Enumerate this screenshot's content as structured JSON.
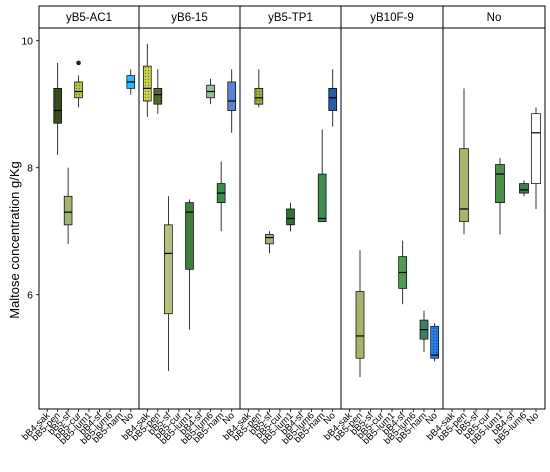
{
  "chart_data": {
    "type": "boxplot",
    "ylabel": "Maltose concentration g/Kg",
    "ylim": [
      4.2,
      10.2
    ],
    "yticks": [
      "6",
      "8",
      "10"
    ],
    "panels": [
      {
        "title": "yB5-AC1",
        "categories": [
          "bB4-sak",
          "bB5-pen",
          "bB5-sf",
          "bB5-cur",
          "bB5-lum1",
          "bB4-sf",
          "bB5-lum6",
          "bB5-ham",
          "No"
        ],
        "boxes": [
          {
            "cat": "bB5-pen",
            "color": "#3a4f1d",
            "hatch": true,
            "min": 8.2,
            "q1": 8.7,
            "med": 8.9,
            "q3": 9.25,
            "max": 9.65,
            "outliers": []
          },
          {
            "cat": "bB5-sf",
            "color": "#a3b471",
            "hatch": false,
            "min": 6.8,
            "q1": 7.1,
            "med": 7.3,
            "q3": 7.55,
            "max": 8.0,
            "outliers": []
          },
          {
            "cat": "bB5-cur",
            "color": "#b5c94a",
            "hatch": true,
            "min": 8.95,
            "q1": 9.1,
            "med": 9.2,
            "q3": 9.35,
            "max": 9.45,
            "outliers": [
              9.65
            ]
          },
          {
            "cat": "No",
            "color": "#2eb8ff",
            "hatch": false,
            "min": 9.15,
            "q1": 9.25,
            "med": 9.35,
            "q3": 9.45,
            "max": 9.55,
            "outliers": []
          }
        ]
      },
      {
        "title": "yB6-15",
        "categories": [
          "bB4-sak",
          "bB5-pen",
          "bB5-sf",
          "bB5-cur",
          "bB5-lum1",
          "bB4-sf",
          "bB5-lum6",
          "bB5-ham",
          "No"
        ],
        "boxes": [
          {
            "cat": "bB4-sak",
            "color": "#cfd94a",
            "hatch": true,
            "min": 8.8,
            "q1": 9.05,
            "med": 9.25,
            "q3": 9.6,
            "max": 9.95,
            "outliers": []
          },
          {
            "cat": "bB5-pen",
            "color": "#5c6b2e",
            "hatch": true,
            "min": 8.85,
            "q1": 9.0,
            "med": 9.15,
            "q3": 9.25,
            "max": 9.55,
            "outliers": []
          },
          {
            "cat": "bB5-sf",
            "color": "#b4c181",
            "hatch": false,
            "min": 4.8,
            "q1": 5.7,
            "med": 6.65,
            "q3": 7.1,
            "max": 7.55,
            "outliers": []
          },
          {
            "cat": "bB5-lum1",
            "color": "#3e7d3a",
            "hatch": false,
            "min": 5.45,
            "q1": 6.4,
            "med": 7.3,
            "q3": 7.45,
            "max": 7.5,
            "outliers": []
          },
          {
            "cat": "bB5-lum6",
            "color": "#8fc09a",
            "hatch": false,
            "min": 9.0,
            "q1": 9.1,
            "med": 9.2,
            "q3": 9.3,
            "max": 9.4,
            "outliers": []
          },
          {
            "cat": "bB5-ham",
            "color": "#3d8c4a",
            "hatch": false,
            "min": 7.0,
            "q1": 7.45,
            "med": 7.6,
            "q3": 7.75,
            "max": 8.1,
            "outliers": []
          },
          {
            "cat": "No",
            "color": "#5b82d6",
            "hatch": false,
            "min": 8.55,
            "q1": 8.9,
            "med": 9.05,
            "q3": 9.35,
            "max": 9.55,
            "outliers": []
          }
        ]
      },
      {
        "title": "yB5-TP1",
        "categories": [
          "bB4-sak",
          "bB5-pen",
          "bB5-sf",
          "bB5-cur",
          "bB5-lum1",
          "bB4-sf",
          "bB5-lum6",
          "bB5-ham",
          "No"
        ],
        "boxes": [
          {
            "cat": "bB5-pen",
            "color": "#a9ab4a",
            "hatch": true,
            "min": 8.95,
            "q1": 9.0,
            "med": 9.1,
            "q3": 9.25,
            "max": 9.55,
            "outliers": []
          },
          {
            "cat": "bB5-sf",
            "color": "#9fb573",
            "hatch": false,
            "min": 6.65,
            "q1": 6.8,
            "med": 6.9,
            "q3": 6.95,
            "max": 7.0,
            "outliers": []
          },
          {
            "cat": "bB5-lum1",
            "color": "#2f6e34",
            "hatch": false,
            "min": 7.0,
            "q1": 7.1,
            "med": 7.2,
            "q3": 7.35,
            "max": 7.45,
            "outliers": []
          },
          {
            "cat": "bB5-ham",
            "color": "#3e8c52",
            "hatch": false,
            "min": 7.15,
            "q1": 7.15,
            "med": 7.2,
            "q3": 7.9,
            "max": 8.6,
            "outliers": []
          },
          {
            "cat": "No",
            "color": "#2b5aa8",
            "hatch": false,
            "min": 8.65,
            "q1": 8.9,
            "med": 9.1,
            "q3": 9.25,
            "max": 9.55,
            "outliers": []
          }
        ]
      },
      {
        "title": "yB10F-9",
        "categories": [
          "bB4-sak",
          "bB5-pen",
          "bB5-sf",
          "bB5-cur",
          "bB5-lum1",
          "bB4-sf",
          "bB5-lum6",
          "bB5-ham",
          "No"
        ],
        "boxes": [
          {
            "cat": "bB5-pen",
            "color": "#a7b46e",
            "hatch": false,
            "min": 4.7,
            "q1": 5.0,
            "med": 5.35,
            "q3": 6.05,
            "max": 6.7,
            "outliers": []
          },
          {
            "cat": "bB4-sf",
            "color": "#4f9a52",
            "hatch": false,
            "min": 5.85,
            "q1": 6.1,
            "med": 6.35,
            "q3": 6.6,
            "max": 6.85,
            "outliers": []
          },
          {
            "cat": "bB5-ham",
            "color": "#3f7e64",
            "hatch": false,
            "min": 5.1,
            "q1": 5.3,
            "med": 5.45,
            "q3": 5.6,
            "max": 5.75,
            "outliers": []
          },
          {
            "cat": "No",
            "color": "#2a7ff0",
            "hatch": true,
            "min": 4.95,
            "q1": 5.0,
            "med": 5.05,
            "q3": 5.5,
            "max": 5.55,
            "outliers": []
          }
        ]
      },
      {
        "title": "No",
        "categories": [
          "bB4-sak",
          "bB5-pen",
          "bB5-sf",
          "bB5-cur",
          "bB5-lum1",
          "bB4-sf",
          "bB5-lum6",
          "No"
        ],
        "boxes": [
          {
            "cat": "bB5-pen",
            "color": "#a7b46e",
            "hatch": false,
            "min": 6.95,
            "q1": 7.15,
            "med": 7.35,
            "q3": 8.3,
            "max": 9.25,
            "outliers": []
          },
          {
            "cat": "bB5-lum1",
            "color": "#4b8f4b",
            "hatch": false,
            "min": 6.95,
            "q1": 7.45,
            "med": 7.9,
            "q3": 8.05,
            "max": 8.15,
            "outliers": []
          },
          {
            "cat": "bB5-lum6",
            "color": "#3f7a52",
            "hatch": false,
            "min": 7.55,
            "q1": 7.6,
            "med": 7.65,
            "q3": 7.75,
            "max": 7.8,
            "outliers": []
          },
          {
            "cat": "No",
            "color": "#ffffff",
            "hatch": false,
            "min": 7.35,
            "q1": 7.75,
            "med": 8.55,
            "q3": 8.85,
            "max": 8.95,
            "outliers": []
          }
        ]
      }
    ]
  }
}
